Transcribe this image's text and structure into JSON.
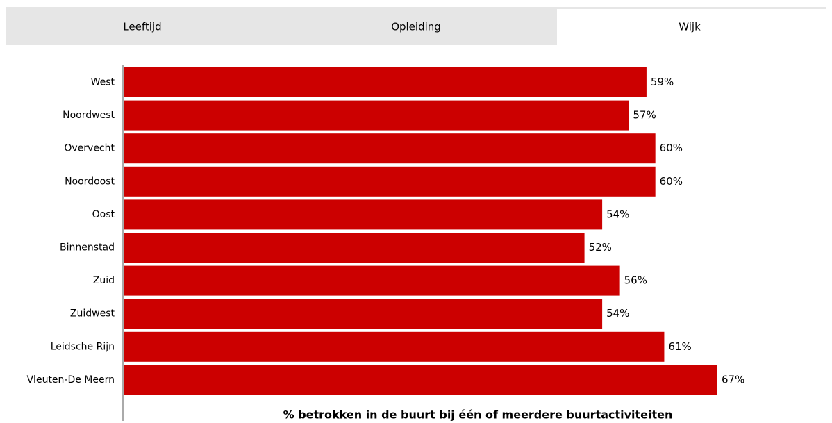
{
  "tabs": [
    {
      "label": "Leeftijd"
    },
    {
      "label": "Opleiding"
    },
    {
      "label": "Wijk",
      "active": true
    }
  ],
  "chart_data": {
    "type": "bar",
    "orientation": "horizontal",
    "categories": [
      "West",
      "Noordwest",
      "Overvecht",
      "Noordoost",
      "Oost",
      "Binnenstad",
      "Zuid",
      "Zuidwest",
      "Leidsche Rijn",
      "Vleuten-De Meern"
    ],
    "values": [
      59,
      57,
      60,
      60,
      54,
      52,
      56,
      54,
      61,
      67
    ],
    "value_labels": [
      "59%",
      "57%",
      "60%",
      "60%",
      "54%",
      "52%",
      "56%",
      "54%",
      "61%",
      "67%"
    ],
    "color": "#cc0000",
    "xlabel": "% betrokken in de buurt bij één of meerdere buurtactiviteiten"
  }
}
